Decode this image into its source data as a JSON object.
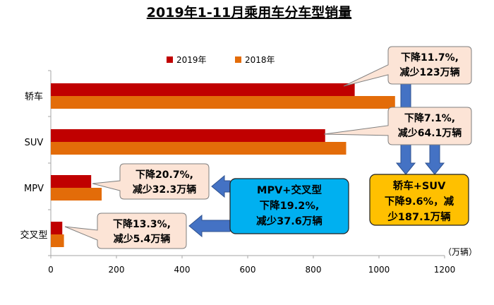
{
  "chart_data": {
    "type": "bar",
    "orientation": "horizontal",
    "title": "2019年1-11月乘用车分车型销量",
    "unit_label": "（万辆）",
    "categories": [
      "轿车",
      "SUV",
      "MPV",
      "交叉型"
    ],
    "series": [
      {
        "name": "2019年",
        "color": "#c00000",
        "values": [
          926,
          836,
          123,
          35
        ]
      },
      {
        "name": "2018年",
        "color": "#e36c09",
        "values": [
          1049,
          900,
          155,
          40
        ]
      }
    ],
    "xlim": [
      0,
      1200
    ],
    "xticks": [
      0,
      200,
      400,
      600,
      800,
      1000,
      1200
    ],
    "grid": false,
    "legend_position": "top-center",
    "annotations": [
      {
        "target": "轿车",
        "lines": [
          "下降11.7%,",
          "减少123万辆"
        ]
      },
      {
        "target": "SUV",
        "lines": [
          "下降7.1%,",
          "减少64.1万辆"
        ]
      },
      {
        "target": "MPV",
        "lines": [
          "下降20.7%,",
          "减少32.3万辆"
        ]
      },
      {
        "target": "交叉型",
        "lines": [
          "下降13.3%,",
          "减少5.4万辆"
        ]
      }
    ],
    "summary_boxes": [
      {
        "target": "MPV+交叉型",
        "lines": [
          "MPV+交叉型",
          "下降19.2%,",
          "减少37.6万辆"
        ],
        "color": "#00b0f0"
      },
      {
        "target": "轿车+SUV",
        "lines": [
          "轿车+SUV",
          "下降9.6%，减",
          "少187.1万辆"
        ],
        "color": "#ffc000"
      }
    ],
    "colors": {
      "callout_fill": "#fce4d6",
      "arrow_fill": "#4472c4"
    }
  }
}
